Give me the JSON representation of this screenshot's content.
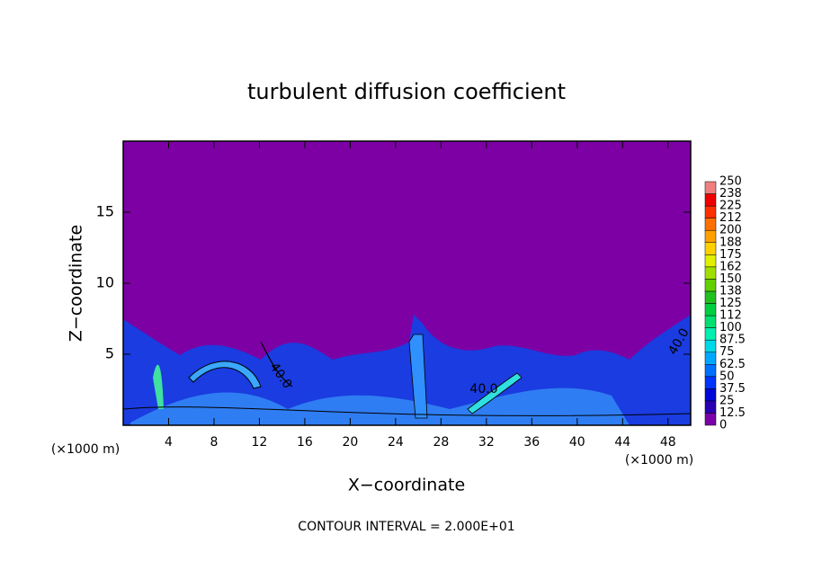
{
  "chart_data": {
    "type": "contour",
    "title": "turbulent diffusion coefficient",
    "xlabel": "X−coordinate",
    "ylabel": "Z−coordinate",
    "x_unit": "(×1000 m)",
    "xlim": [
      0,
      50
    ],
    "xticks": [
      4,
      8,
      12,
      16,
      20,
      24,
      28,
      32,
      36,
      40,
      44,
      48
    ],
    "ylim": [
      0,
      20
    ],
    "yticks": [
      5,
      10,
      15
    ],
    "contour_labels": [
      "40.0",
      "40.0",
      "40.0"
    ],
    "footer": "CONTOUR INTERVAL = 2.000E+01",
    "colorbar": {
      "levels": [
        0,
        12.5,
        25,
        37.5,
        50,
        62.5,
        75,
        87.5,
        100,
        112,
        125,
        138,
        150,
        162,
        175,
        188,
        200,
        212,
        225,
        238,
        250
      ],
      "colors": [
        "#7a00a8",
        "#2a00b4",
        "#0008d8",
        "#0034ff",
        "#0070ff",
        "#00a8ff",
        "#00d8e8",
        "#00f0b0",
        "#00e070",
        "#00d040",
        "#20c020",
        "#60d000",
        "#a0e000",
        "#e0f000",
        "#ffd000",
        "#ffa000",
        "#ff7000",
        "#ff3000",
        "#f00000",
        "#f08080"
      ]
    }
  }
}
